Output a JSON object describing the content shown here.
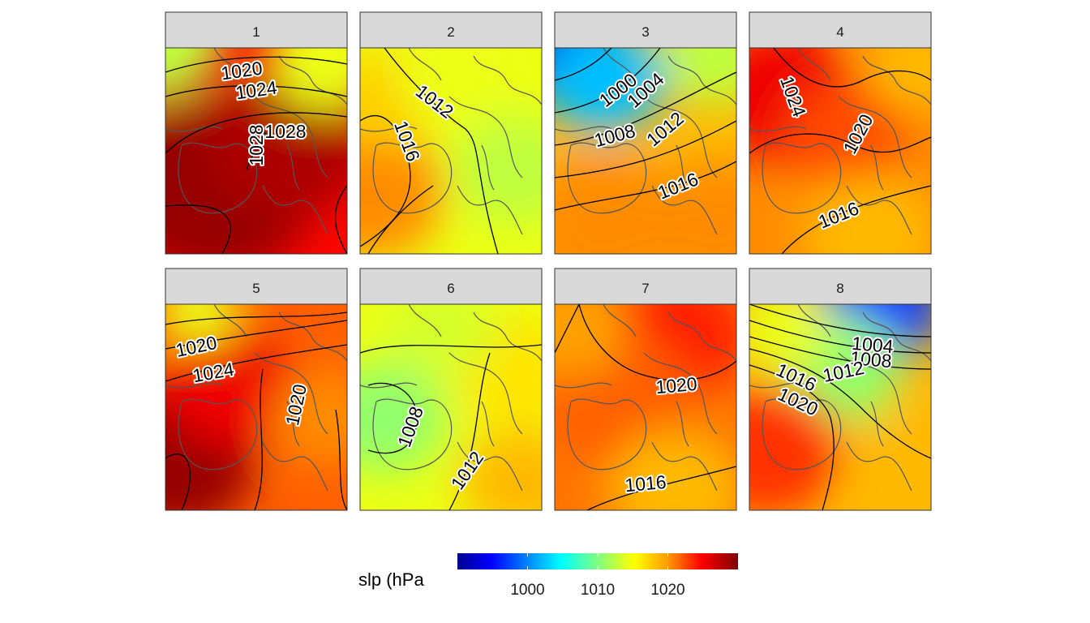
{
  "chart_data": {
    "type": "heatmap",
    "variable": "slp",
    "colorbar": {
      "title": "slp (hPa",
      "range": [
        990,
        1030
      ],
      "ticks": [
        1000,
        1010,
        1020
      ],
      "tick_labels": [
        "1000",
        "1010",
        "1020"
      ],
      "colormap": [
        "#00008F",
        "#0000FF",
        "#00FFFF",
        "#7FFF7F",
        "#FFFF00",
        "#FF7F00",
        "#FF0000",
        "#7F0000"
      ]
    },
    "panels": [
      {
        "label": "1",
        "contour_labels": [
          "1020",
          "1024",
          "1028",
          "1028"
        ],
        "contour_levels": [
          1016,
          1020,
          1024,
          1028
        ]
      },
      {
        "label": "2",
        "contour_labels": [
          "1012",
          "1016"
        ],
        "contour_levels": [
          1008,
          1012,
          1016
        ]
      },
      {
        "label": "3",
        "contour_labels": [
          "1000",
          "1004",
          "1008",
          "1012",
          "1016"
        ],
        "contour_levels": [
          996,
          1000,
          1004,
          1008,
          1012,
          1016
        ]
      },
      {
        "label": "4",
        "contour_labels": [
          "1024",
          "1020",
          "1016"
        ],
        "contour_levels": [
          1016,
          1020,
          1024
        ]
      },
      {
        "label": "5",
        "contour_labels": [
          "1020",
          "1024",
          "1020"
        ],
        "contour_levels": [
          1016,
          1020,
          1024,
          1028
        ]
      },
      {
        "label": "6",
        "contour_labels": [
          "1008",
          "1012"
        ],
        "contour_levels": [
          1008,
          1012
        ]
      },
      {
        "label": "7",
        "contour_labels": [
          "1020",
          "1016"
        ],
        "contour_levels": [
          1016,
          1020
        ]
      },
      {
        "label": "8",
        "contour_labels": [
          "1004",
          "1008",
          "1012",
          "1016",
          "1020"
        ],
        "contour_levels": [
          1004,
          1008,
          1012,
          1016,
          1020
        ]
      }
    ]
  }
}
